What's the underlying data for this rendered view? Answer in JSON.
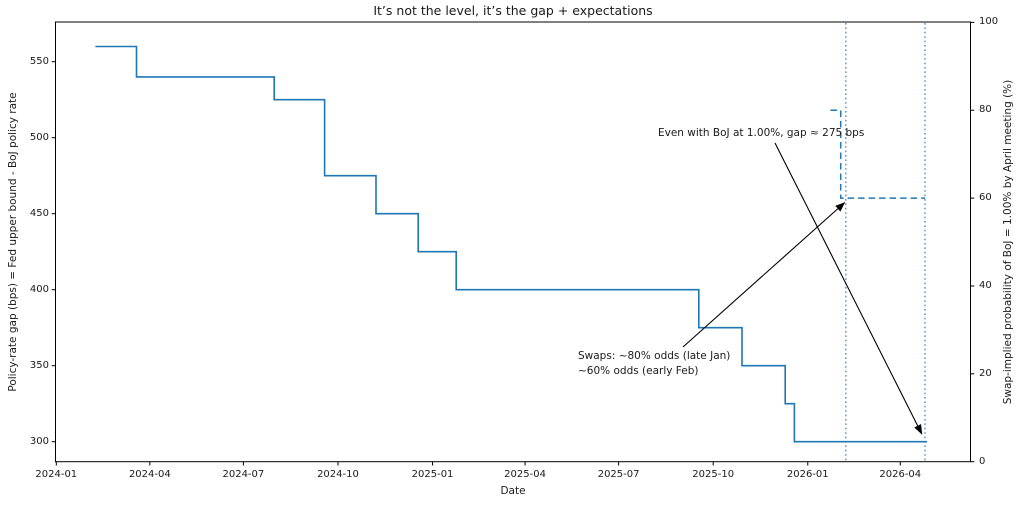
{
  "chart": {
    "title": "It’s not the level, it’s the gap + expectations",
    "x_axis": {
      "label": "Date",
      "tick_labels": [
        "2024-01",
        "2024-04",
        "2024-07",
        "2024-10",
        "2025-01",
        "2025-04",
        "2025-07",
        "2025-10",
        "2026-01",
        "2026-04"
      ]
    },
    "y_axis_left": {
      "label": "Policy-rate gap (bps) = Fed upper bound - BoJ policy rate",
      "ticks": [
        300,
        350,
        400,
        450,
        500,
        550
      ]
    },
    "y_axis_right": {
      "label": "Swap-implied probability of BoJ = 1.00% by April meeting (%)",
      "ticks": [
        0,
        20,
        40,
        60,
        80,
        100
      ]
    },
    "annotations": [
      {
        "text": "Even with BoJ at 1.00%, gap ≈ 275 bps"
      },
      {
        "lines": [
          "Swaps: ~80% odds (late Jan)",
          "~60% odds (early Feb)"
        ]
      }
    ]
  },
  "chart_data": {
    "type": "line",
    "subtype": "step-post",
    "title": "It’s not the level, it’s the gap + expectations",
    "xlabel": "Date",
    "x_range": [
      "2024-01-01",
      "2026-06-06"
    ],
    "x_tick_labels": [
      "2024-01",
      "2024-04",
      "2024-07",
      "2024-10",
      "2025-01",
      "2025-04",
      "2025-07",
      "2025-10",
      "2026-01",
      "2026-04"
    ],
    "y_left": {
      "label": "Policy-rate gap (bps) = Fed upper bound - BoJ policy rate",
      "ticks": [
        300,
        350,
        400,
        450,
        500,
        550
      ],
      "range": [
        287,
        577
      ]
    },
    "y_right": {
      "label": "Swap-implied probability of BoJ = 1.00% by April meeting (%)",
      "ticks": [
        0,
        20,
        40,
        60,
        80,
        100
      ],
      "range": [
        0,
        100
      ]
    },
    "grid": false,
    "legend": false,
    "series": [
      {
        "name": "Policy-rate gap (bps)",
        "axis": "left",
        "style": "solid",
        "points": [
          {
            "date": "2024-02-08",
            "value": 560
          },
          {
            "date": "2024-03-19",
            "value": 540
          },
          {
            "date": "2024-07-31",
            "value": 525
          },
          {
            "date": "2024-09-18",
            "value": 475
          },
          {
            "date": "2024-11-07",
            "value": 450
          },
          {
            "date": "2024-12-18",
            "value": 425
          },
          {
            "date": "2025-01-24",
            "value": 400
          },
          {
            "date": "2025-09-17",
            "value": 375
          },
          {
            "date": "2025-10-29",
            "value": 350
          },
          {
            "date": "2025-12-10",
            "value": 325
          },
          {
            "date": "2025-12-19",
            "value": 300
          },
          {
            "date": "2026-04-27",
            "value": 300
          }
        ]
      },
      {
        "name": "Swap-implied probability of BoJ = 1.00% (%)",
        "axis": "right",
        "style": "dashed",
        "points": [
          {
            "date": "2026-01-23",
            "value": 80
          },
          {
            "date": "2026-02-02",
            "value": 60
          },
          {
            "date": "2026-04-25",
            "value": 60
          }
        ]
      }
    ],
    "vlines": [
      {
        "date": "2026-02-07",
        "style": "dotted"
      },
      {
        "date": "2026-04-25",
        "style": "dotted"
      }
    ],
    "annotations": [
      {
        "text": "Even with BoJ at 1.00%, gap ≈ 275 bps",
        "arrow_to": {
          "date": "2026-04-22",
          "value": 305,
          "axis": "left"
        }
      },
      {
        "text": "Swaps: ~80% odds (late Jan)\n~60% odds (early Feb)",
        "arrow_to": {
          "date": "2026-02-06",
          "value": 59,
          "axis": "right"
        }
      }
    ],
    "colors": {
      "line": "#1f77b4",
      "dashed": "#1f77b4",
      "dotted": "#1f77b4",
      "arrow": "#000000",
      "axis": "#000000",
      "text": "#1a1a1a"
    }
  }
}
